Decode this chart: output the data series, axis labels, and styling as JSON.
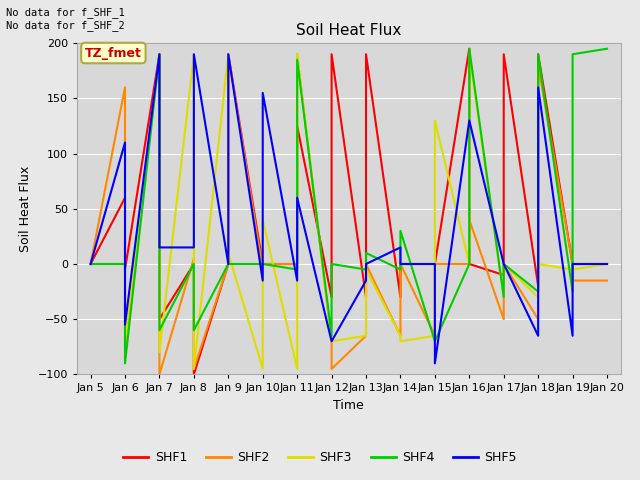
{
  "title": "Soil Heat Flux",
  "ylabel": "Soil Heat Flux",
  "xlabel": "Time",
  "ylim": [
    -100,
    200
  ],
  "xlim": [
    4.6,
    20.4
  ],
  "fig_bg": "#e8e8e8",
  "ax_bg": "#d8d8d8",
  "annotation": "No data for f_SHF_1\nNo data for f_SHF_2",
  "tz_label": "TZ_fmet",
  "tz_color": "#cc0000",
  "tz_bg": "#ffffcc",
  "tz_edge": "#aaaa44",
  "series": [
    {
      "name": "SHF1",
      "color": "#ff0000",
      "x": [
        5,
        6,
        6,
        7,
        7,
        8,
        8,
        9,
        9,
        10,
        10,
        11,
        11,
        12,
        12,
        13,
        13,
        14,
        14,
        15,
        15,
        16,
        16,
        17,
        17,
        18,
        18,
        19,
        19,
        20
      ],
      "y": [
        0,
        60,
        -5,
        190,
        -50,
        0,
        -100,
        0,
        190,
        0,
        0,
        0,
        125,
        -30,
        190,
        -30,
        190,
        -30,
        0,
        0,
        0,
        195,
        0,
        -10,
        190,
        -20,
        190,
        0,
        0,
        0
      ]
    },
    {
      "name": "SHF2",
      "color": "#ff8800",
      "x": [
        5,
        6,
        6,
        7,
        7,
        8,
        8,
        9,
        9,
        10,
        10,
        11,
        11,
        12,
        12,
        13,
        13,
        14,
        14,
        15,
        15,
        16,
        16,
        17,
        17,
        18,
        18,
        19,
        19,
        20
      ],
      "y": [
        0,
        160,
        -75,
        190,
        -100,
        5,
        -95,
        0,
        190,
        -5,
        0,
        0,
        190,
        -70,
        -95,
        -65,
        0,
        -65,
        0,
        -65,
        0,
        0,
        40,
        -50,
        0,
        -50,
        180,
        0,
        -15,
        -15
      ]
    },
    {
      "name": "SHF3",
      "color": "#dddd00",
      "x": [
        5,
        6,
        6,
        7,
        7,
        8,
        8,
        9,
        9,
        10,
        10,
        11,
        11,
        12,
        12,
        13,
        13,
        14,
        14,
        15,
        15,
        16,
        16,
        17,
        17,
        18,
        18,
        19,
        19,
        20
      ],
      "y": [
        0,
        0,
        -70,
        190,
        -80,
        190,
        -95,
        190,
        10,
        -95,
        40,
        -95,
        190,
        -70,
        -70,
        -65,
        -5,
        -65,
        -70,
        -65,
        130,
        0,
        190,
        -30,
        0,
        -30,
        0,
        -5,
        -5,
        0
      ]
    },
    {
      "name": "SHF4",
      "color": "#00cc00",
      "x": [
        5,
        6,
        6,
        7,
        7,
        8,
        8,
        9,
        9,
        10,
        10,
        11,
        11,
        12,
        12,
        13,
        13,
        14,
        14,
        15,
        15,
        16,
        16,
        17,
        17,
        18,
        18,
        19,
        19,
        20
      ],
      "y": [
        0,
        0,
        -90,
        190,
        -60,
        0,
        -60,
        0,
        0,
        0,
        0,
        -5,
        185,
        -65,
        0,
        -5,
        10,
        -5,
        30,
        -70,
        -70,
        0,
        195,
        -30,
        0,
        -25,
        190,
        -25,
        190,
        195
      ]
    },
    {
      "name": "SHF5",
      "color": "#0000ff",
      "x": [
        5,
        6,
        6,
        7,
        7,
        8,
        8,
        9,
        9,
        10,
        10,
        11,
        11,
        12,
        12,
        13,
        13,
        14,
        14,
        15,
        15,
        16,
        16,
        17,
        17,
        18,
        18,
        19,
        19,
        20
      ],
      "y": [
        0,
        110,
        -55,
        190,
        15,
        15,
        190,
        0,
        190,
        -15,
        155,
        -15,
        60,
        -70,
        -70,
        -15,
        0,
        15,
        0,
        0,
        -90,
        130,
        130,
        0,
        0,
        -65,
        160,
        -65,
        0,
        0
      ]
    }
  ],
  "xticks": [
    5,
    6,
    7,
    8,
    9,
    10,
    11,
    12,
    13,
    14,
    15,
    16,
    17,
    18,
    19,
    20
  ],
  "xtick_labels": [
    "Jan 5",
    "Jan 6",
    "Jan 7",
    "Jan 8",
    "Jan 9",
    "Jan 10",
    "Jan 11",
    "Jan 12",
    "Jan 13",
    "Jan 14",
    "Jan 15",
    "Jan 16",
    "Jan 17",
    "Jan 18",
    "Jan 19",
    "Jan 20"
  ],
  "yticks": [
    -100,
    -50,
    0,
    50,
    100,
    150,
    200
  ],
  "grid_color": "#ffffff",
  "line_width": 1.5
}
